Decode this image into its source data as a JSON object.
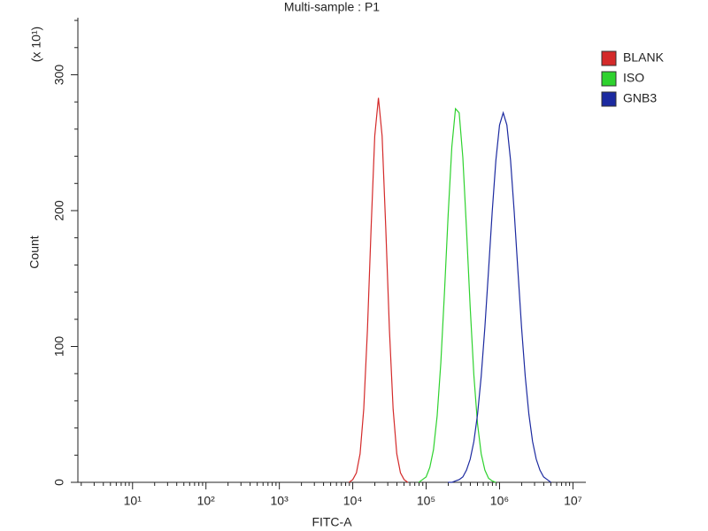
{
  "chart_data": {
    "type": "line",
    "title": "Multi-sample : P1",
    "xlabel": "FITC-A",
    "ylabel": "Count",
    "y_units_label": "(x 10¹)",
    "xscale": "log",
    "xlim": [
      1.8,
      15000000
    ],
    "ylim": [
      0,
      342
    ],
    "xticks": [
      {
        "value": 10,
        "label": "10¹"
      },
      {
        "value": 100,
        "label": "10²"
      },
      {
        "value": 1000,
        "label": "10³"
      },
      {
        "value": 10000,
        "label": "10⁴"
      },
      {
        "value": 100000,
        "label": "10⁵"
      },
      {
        "value": 1000000,
        "label": "10⁶"
      },
      {
        "value": 10000000,
        "label": "10⁷"
      }
    ],
    "xminorticks": [
      2,
      3,
      4,
      5,
      6,
      7,
      8,
      9,
      20,
      30,
      40,
      50,
      60,
      70,
      80,
      90,
      200,
      300,
      400,
      500,
      600,
      700,
      800,
      900,
      2000,
      3000,
      4000,
      5000,
      6000,
      7000,
      8000,
      9000,
      20000,
      30000,
      40000,
      50000,
      60000,
      70000,
      80000,
      90000,
      200000,
      300000,
      400000,
      500000,
      600000,
      700000,
      800000,
      900000,
      2000000,
      3000000,
      4000000,
      5000000,
      6000000,
      7000000,
      8000000,
      9000000
    ],
    "yticks": [
      0,
      100,
      200,
      300
    ],
    "yminorticks": [
      20,
      40,
      60,
      80,
      120,
      140,
      160,
      180,
      220,
      240,
      260,
      280,
      320,
      340
    ],
    "legend": "upper right",
    "x": [
      8913,
      10000,
      11220,
      12589,
      14125,
      15849,
      17783,
      19953,
      22387,
      25119,
      28184,
      31623,
      35481,
      39811,
      44668,
      50119,
      56234,
      63096,
      70795,
      79433,
      89125,
      100000,
      112202,
      125893,
      141254,
      158489,
      177828,
      199526,
      223872,
      251189,
      281838,
      316228,
      354813,
      398107,
      446684,
      501187,
      562341,
      630957,
      707946,
      794328,
      891251,
      1000000,
      1122018,
      1258925,
      1412538,
      1584893,
      1778279,
      1995262,
      2238721,
      2511886,
      2818383,
      3162278,
      3548134,
      3981072,
      4466836,
      5011872
    ],
    "series": [
      {
        "name": "BLANK",
        "color": "#d42a2a",
        "values": [
          0,
          2,
          7,
          21,
          54,
          112,
          187,
          255,
          283,
          255,
          187,
          112,
          54,
          21,
          7,
          2,
          0,
          null,
          null,
          null,
          null,
          null,
          null,
          null,
          null,
          null,
          null,
          null,
          null,
          null,
          null,
          null,
          null,
          null,
          null,
          null,
          null,
          null,
          null,
          null,
          null,
          null,
          null,
          null,
          null,
          null,
          null,
          null,
          null,
          null,
          null,
          null,
          null,
          null,
          null,
          null
        ]
      },
      {
        "name": "ISO",
        "color": "#2ed22e",
        "values": [
          null,
          null,
          null,
          null,
          null,
          null,
          null,
          null,
          null,
          null,
          null,
          null,
          null,
          null,
          null,
          null,
          null,
          null,
          null,
          0,
          2,
          4,
          11,
          24,
          49,
          88,
          140,
          197,
          247,
          275,
          272,
          239,
          186,
          129,
          79,
          43,
          21,
          9,
          3,
          1,
          0,
          null,
          null,
          null,
          null,
          null,
          null,
          null,
          null,
          null,
          null,
          null,
          null,
          null,
          null,
          null
        ]
      },
      {
        "name": "GNB3",
        "color": "#1c2aa0",
        "values": [
          null,
          null,
          null,
          null,
          null,
          null,
          null,
          null,
          null,
          null,
          null,
          null,
          null,
          null,
          null,
          null,
          null,
          null,
          null,
          null,
          null,
          null,
          null,
          null,
          null,
          null,
          null,
          0,
          0,
          1,
          2,
          4,
          9,
          17,
          30,
          50,
          78,
          114,
          156,
          199,
          237,
          263,
          272,
          263,
          237,
          199,
          156,
          114,
          78,
          50,
          30,
          17,
          9,
          4,
          2,
          0
        ]
      }
    ]
  }
}
